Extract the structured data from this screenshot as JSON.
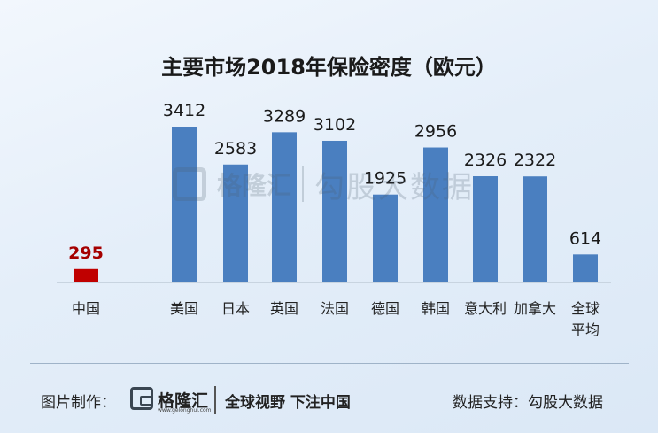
{
  "chart_data": {
    "type": "bar",
    "title": "主要市场2018年保险密度（欧元）",
    "categories": [
      "中国",
      "美国",
      "日本",
      "英国",
      "法国",
      "德国",
      "韩国",
      "意大利",
      "加拿大",
      "全球平均"
    ],
    "category_lines": [
      [
        "中国"
      ],
      [
        "美国"
      ],
      [
        "日本"
      ],
      [
        "英国"
      ],
      [
        "法国"
      ],
      [
        "德国"
      ],
      [
        "韩国"
      ],
      [
        "意大利"
      ],
      [
        "加拿大"
      ],
      [
        "全球",
        "平均"
      ]
    ],
    "values": [
      295,
      3412,
      2583,
      3289,
      3102,
      1925,
      2956,
      2326,
      2322,
      614
    ],
    "value_labels": [
      "295",
      "3412",
      "2583",
      "3289",
      "3102",
      "1925",
      "2956",
      "2326",
      "2322",
      "614"
    ],
    "colors": {
      "highlight": "#c00000",
      "highlight_label": "#a50000",
      "bar": "#4a7fc0",
      "label": "#1a1a1a"
    },
    "highlight_index": 0,
    "ylim": [
      0,
      3412
    ],
    "grid": false,
    "legend": "none"
  },
  "watermark": {
    "brand": "格隆汇",
    "source": "勾股大数据"
  },
  "footer": {
    "credit_label": "图片制作：",
    "brand_name": "格隆汇",
    "brand_url": "www.gelonghui.com",
    "slogan": "全球视野 下注中国",
    "data_support": "数据支持：勾股大数据"
  }
}
